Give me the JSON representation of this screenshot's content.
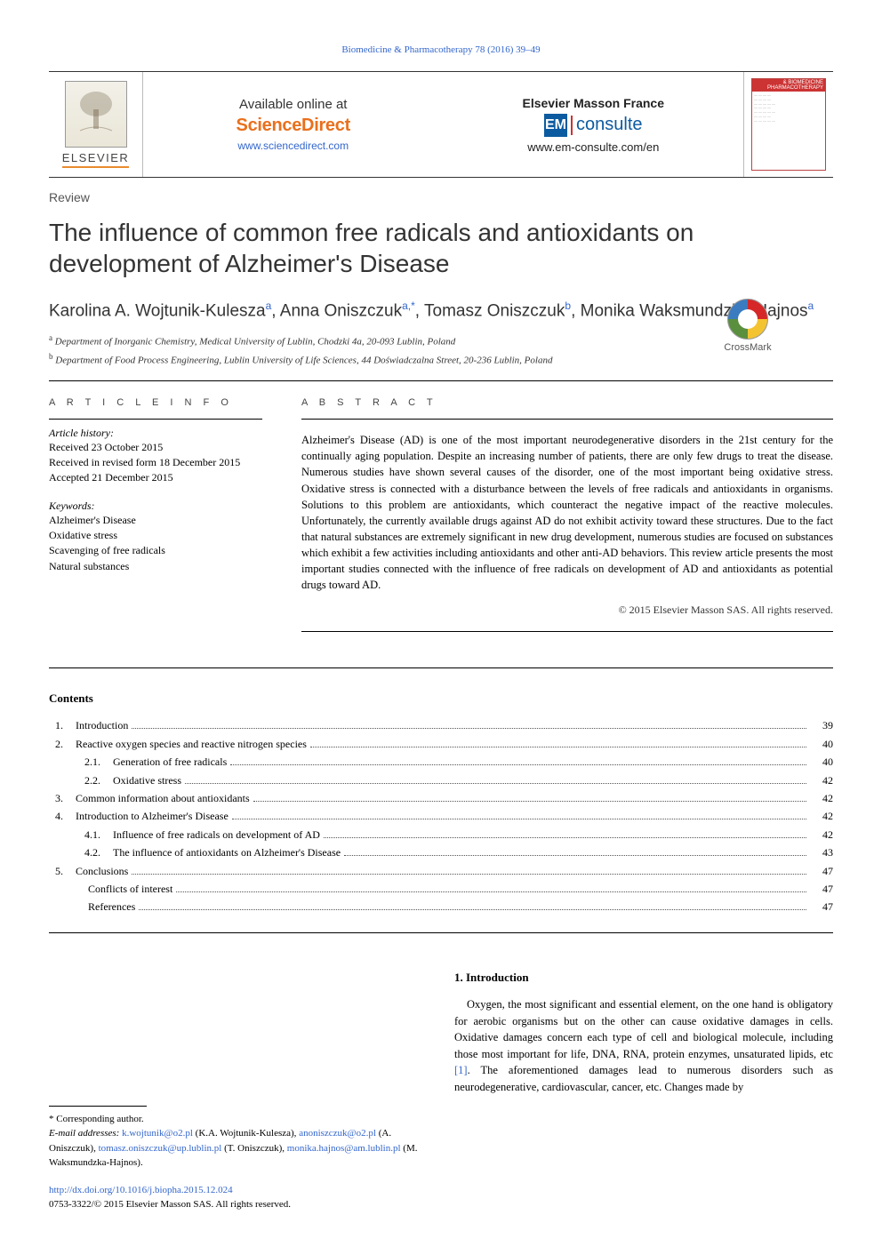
{
  "running_head": "Biomedicine & Pharmacotherapy 78 (2016) 39–49",
  "top": {
    "elsevier_word": "ELSEVIER",
    "available_label": "Available online at",
    "sciencedirect_logo": "ScienceDirect",
    "sd_url": "www.sciencedirect.com",
    "masson_label": "Elsevier Masson France",
    "em_prefix": "EM",
    "em_word": "consulte",
    "em_url": "www.em-consulte.com/en",
    "cover_banner": "& BIOMEDICINE PHARMACOTHERAPY"
  },
  "article_type": "Review",
  "title": "The influence of common free radicals and antioxidants on development of Alzheimer's Disease",
  "crossmark_label": "CrossMark",
  "authors_html": "Karolina A. Wojtunik-Kulesza<sup>a</sup>, Anna Oniszczuk<sup>a,*</sup>, Tomasz Oniszczuk<sup>b</sup>, Monika Waksmundzka-Hajnos<sup>a</sup>",
  "affiliations": [
    {
      "sup": "a",
      "text": "Department of Inorganic Chemistry, Medical University of Lublin, Chodzki 4a, 20-093 Lublin, Poland"
    },
    {
      "sup": "b",
      "text": "Department of Food Process Engineering, Lublin University of Life Sciences, 44 Doświadczalna Street, 20-236 Lublin, Poland"
    }
  ],
  "info_label": "A R T I C L E   I N F O",
  "abstract_label": "A B S T R A C T",
  "history": {
    "label": "Article history:",
    "items": [
      "Received 23 October 2015",
      "Received in revised form 18 December 2015",
      "Accepted 21 December 2015"
    ]
  },
  "keywords": {
    "label": "Keywords:",
    "items": [
      "Alzheimer's Disease",
      "Oxidative stress",
      "Scavenging of free radicals",
      "Natural substances"
    ]
  },
  "abstract": "Alzheimer's Disease (AD) is one of the most important neurodegenerative disorders in the 21st century for the continually aging population. Despite an increasing number of patients, there are only few drugs to treat the disease. Numerous studies have shown several causes of the disorder, one of the most important being oxidative stress. Oxidative stress is connected with a disturbance between the levels of free radicals and antioxidants in organisms. Solutions to this problem are antioxidants, which counteract the negative impact of the reactive molecules. Unfortunately, the currently available drugs against AD do not exhibit activity toward these structures. Due to the fact that natural substances are extremely significant in new drug development, numerous studies are focused on substances which exhibit a few activities including antioxidants and other anti-AD behaviors. This review article presents the most important studies connected with the influence of free radicals on development of AD and antioxidants as potential drugs toward AD.",
  "copyright": "© 2015 Elsevier Masson SAS. All rights reserved.",
  "contents_label": "Contents",
  "toc": [
    {
      "num": "1.",
      "indent": 0,
      "title": "Introduction",
      "page": "39"
    },
    {
      "num": "2.",
      "indent": 0,
      "title": "Reactive oxygen species and reactive nitrogen species",
      "page": "40"
    },
    {
      "num": "2.1.",
      "indent": 1,
      "title": "Generation of free radicals",
      "page": "40"
    },
    {
      "num": "2.2.",
      "indent": 1,
      "title": "Oxidative stress",
      "page": "42"
    },
    {
      "num": "3.",
      "indent": 0,
      "title": "Common information about antioxidants",
      "page": "42"
    },
    {
      "num": "4.",
      "indent": 0,
      "title": "Introduction to Alzheimer's Disease",
      "page": "42"
    },
    {
      "num": "4.1.",
      "indent": 1,
      "title": "Influence of free radicals on development of AD",
      "page": "42"
    },
    {
      "num": "4.2.",
      "indent": 1,
      "title": "The influence of antioxidants on Alzheimer's Disease",
      "page": "43"
    },
    {
      "num": "5.",
      "indent": 0,
      "title": "Conclusions",
      "page": "47"
    },
    {
      "num": "",
      "indent": 0,
      "title": "Conflicts of interest",
      "page": "47",
      "noind": true
    },
    {
      "num": "",
      "indent": 0,
      "title": "References",
      "page": "47",
      "noind": true
    }
  ],
  "section1": {
    "heading": "1. Introduction",
    "para": "Oxygen, the most significant and essential element, on the one hand is obligatory for aerobic organisms but on the other can cause oxidative damages in cells. Oxidative damages concern each type of cell and biological molecule, including those most important for life, DNA, RNA, protein enzymes, unsaturated lipids, etc ",
    "ref": "[1]",
    "para_tail": ". The aforementioned damages lead to numerous disorders such as neurodegenerative, cardiovascular, cancer, etc. Changes made by"
  },
  "footnote": {
    "corr": "* Corresponding author.",
    "email_label": "E-mail addresses:",
    "emails": [
      {
        "addr": "k.wojtunik@o2.pl",
        "who": "(K.A. Wojtunik-Kulesza)"
      },
      {
        "addr": "anoniszczuk@o2.pl",
        "who": "(A. Oniszczuk)"
      },
      {
        "addr": "tomasz.oniszczuk@up.lublin.pl",
        "who": "(T. Oniszczuk)"
      },
      {
        "addr": "monika.hajnos@am.lublin.pl",
        "who": "(M. Waksmundzka-Hajnos)."
      }
    ]
  },
  "doi": {
    "url": "http://dx.doi.org/10.1016/j.biopha.2015.12.024",
    "issn_line": "0753-3322/© 2015 Elsevier Masson SAS. All rights reserved."
  },
  "colors": {
    "link": "#3366cc",
    "orange": "#e9701d",
    "blue": "#0c5ba0",
    "red": "#c33"
  }
}
